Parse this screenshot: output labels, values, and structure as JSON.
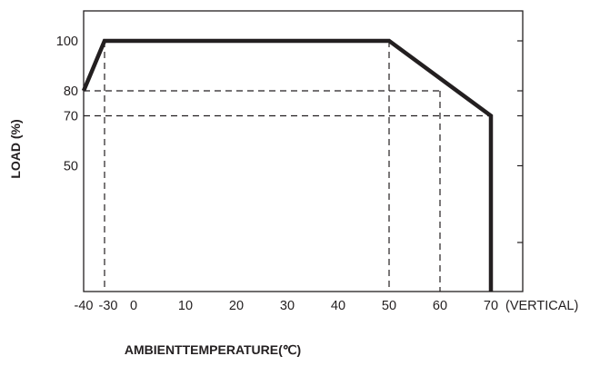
{
  "chart_data": {
    "type": "line",
    "title": "",
    "xlabel": "AMBIENTTEMPERATURE(℃)",
    "ylabel": "LOAD (%)",
    "x_axis_suffix": "(VERTICAL)",
    "xlim": [
      -40,
      80
    ],
    "ylim": [
      0,
      110
    ],
    "x_ticks": [
      -40,
      -30,
      0,
      10,
      20,
      30,
      40,
      50,
      60,
      70
    ],
    "x_tick_labels": [
      "-40",
      "-30",
      "0",
      "10",
      "20",
      "30",
      "40",
      "50",
      "60",
      "70"
    ],
    "y_ticks": [
      20,
      50,
      70,
      80,
      100
    ],
    "y_tick_labels": [
      "",
      "50",
      "70",
      "80",
      "100"
    ],
    "grid": false,
    "series": [
      {
        "x": [
          -40,
          -30,
          50,
          70,
          70
        ],
        "y": [
          80,
          100,
          100,
          70,
          0
        ],
        "color": "#231f20"
      }
    ],
    "reference_lines": {
      "vertical": [
        {
          "x": -30,
          "y_top": 100
        },
        {
          "x": 50,
          "y_top": 100
        },
        {
          "x": 60,
          "y_top": 80
        }
      ],
      "horizontal": [
        {
          "y": 80,
          "x_right": 60
        },
        {
          "y": 70,
          "x_right": 70
        }
      ]
    }
  }
}
